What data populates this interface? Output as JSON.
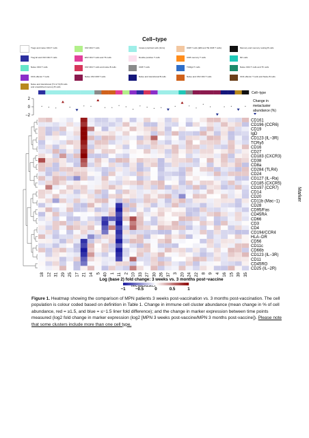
{
  "legend": {
    "title": "Cell−type",
    "items": [
      {
        "label": "Tregs and naive CD4 T cells",
        "color": "#ffffff"
      },
      {
        "label": "CM CD4 T cells",
        "color": "#b2f08a"
      },
      {
        "label": "Innate lymphoid cells (ILCs)",
        "color": "#9eeee8"
      },
      {
        "label": "CD8 T cells (EM and TE CD8 T cells)",
        "color": "#f3c7a0"
      },
      {
        "label": "Memory and memory resting B cells",
        "color": "#111111"
      },
      {
        "label": "Treg EI and CM CD4 T cells",
        "color": "#2b2f9f"
      },
      {
        "label": "EM CD4 T cells and Th cells",
        "color": "#e23f9a"
      },
      {
        "label": "Double positive T cells",
        "color": "#fbe0ee"
      },
      {
        "label": "CD8 memory T cells",
        "color": "#ff8c1a"
      },
      {
        "label": "NK cells",
        "color": "#1fc8b8"
      },
      {
        "label": "Naive CD4 T cells",
        "color": "#66e6c9"
      },
      {
        "label": "CM CD4 T cells and naive B cells",
        "color": "#d6365b"
      },
      {
        "label": "CD8 T cells",
        "color": "#8a8a8a"
      },
      {
        "label": "TCRgd T cells",
        "color": "#2f6ec8"
      },
      {
        "label": "Naive CD4 T cells and Th cells",
        "color": "#1c8a6a"
      },
      {
        "label": "CD4 effector T cells",
        "color": "#8b2fc9"
      },
      {
        "label": "Naive CM CD8 T cells",
        "color": "#8b1a4e"
      },
      {
        "label": "Naive and transitional B cells",
        "color": "#14167a"
      },
      {
        "label": "Naive and CM CD4 T cells",
        "color": "#d0621c"
      },
      {
        "label": "CD4 effector T cells and Naive B cells",
        "color": "#6b3f1a"
      },
      {
        "label": "Naive and transitional (T1 & T2) B cells and unswitched memory B cells",
        "color": "#b8891e"
      }
    ]
  },
  "figure": {
    "celltype_label": "Cell−type",
    "change_label": [
      "Change in",
      "metacluster",
      "abundance (%)"
    ],
    "change_ticks": [
      "2",
      "0",
      "−2"
    ],
    "xlabel": "Metacluster",
    "ylabel": "Marker",
    "colorbar_title": "Log (base 2) fold change: 3 weeks vs. 3 months post−vaccine",
    "colorbar_ticks": [
      "−1",
      "−0.5",
      "0",
      "0.5",
      "1"
    ],
    "colorbar_colors": {
      "low": "#1a1a9e",
      "mid": "#ffffff",
      "high": "#8b0000"
    }
  },
  "chart_data": {
    "type": "heatmap",
    "title": "",
    "xlabel": "Metacluster",
    "ylabel": "Marker",
    "columns": [
      "18",
      "12",
      "31",
      "29",
      "25",
      "17",
      "21",
      "14",
      "5",
      "40",
      "1",
      "11",
      "2",
      "10",
      "33",
      "27",
      "30",
      "26",
      "37",
      "3",
      "20",
      "24",
      "22",
      "8",
      "9",
      "4",
      "16",
      "15",
      "39",
      "35"
    ],
    "column_celltypes": [
      "#2b2f9f",
      "#9eeee8",
      "#9eeee8",
      "#9eeee8",
      "#9eeee8",
      "#9eeee8",
      "#9eeee8",
      "#9eeee8",
      "#8a8a8a",
      "#d0621c",
      "#d0621c",
      "#e23f9a",
      "#b2f08a",
      "#8b2fc9",
      "#2b2f9f",
      "#d6365b",
      "#8b2fc9",
      "#9eeee8",
      "#9eeee8",
      "#9eeee8",
      "#1fc8b8",
      "#8a8a8a",
      "#8b1a4e",
      "#8b1a4e",
      "#8b1a4e",
      "#8b1a4e",
      "#14167a",
      "#14167a",
      "#b8891e",
      "#111111"
    ],
    "rows": [
      "CD161",
      "CD196 (CCR6)",
      "CD19",
      "IgD",
      "CD123 (IL−3R)",
      "TCRγδ",
      "CD16",
      "CD27",
      "CD183 (CXCR3)",
      "CD38",
      "CD8a",
      "CD284 (TLR4)",
      "CD24",
      "CD127 (IL−Ra)",
      "CD185 (CXCR5)",
      "CD197 (CCR7)",
      "CD14",
      "CD20",
      "CD11b (Mac−1)",
      "CD28",
      "CD95/Fas",
      "CD45RA",
      "CD66",
      "CD3",
      "CD4",
      "CD194/CCR4",
      "HLA−DR",
      "CD56",
      "CD11c",
      "CD66b",
      "CD123 (IL−3R)",
      "CD11",
      "CD45RO",
      "CD25 (IL−2R)"
    ],
    "abundance_change": [
      0.1,
      -0.1,
      -0.3,
      1.2,
      -0.1,
      -0.8,
      0.2,
      0.1,
      1.6,
      -0.2,
      -0.2,
      0.3,
      0.0,
      -0.6,
      0.2,
      -0.1,
      -0.4,
      -0.2,
      -0.7,
      0.1,
      1.0,
      0.2,
      -0.3,
      0.6,
      0.0,
      -1.9,
      0.0,
      0.1,
      -0.7,
      0.1
    ],
    "colorbar_range": [
      -1,
      1
    ],
    "colorbar_ticks": [
      -1,
      -0.5,
      0,
      0.5,
      1
    ],
    "note": "cell values estimated from colour intensity"
  },
  "caption": {
    "label": "Figure 1.",
    "text": " Heatmap showing the comparison of MPN patients 3 weeks post-vaccination vs. 3 months post-vaccination. The cell population is colour coded based on definition in Table 1.  Change in immune cell cluster abundance (mean change in % of cell abundance, red = ≥1.5, and blue = ≤−1.5 liner fold difference); and the change in marker expression between time points measured (log2 fold change in marker expression (log2 [MPN 3 weeks post-vaccine/MPN 3 months post-vaccine]).",
    "note": "Please note that some clusters include more than one cell type."
  }
}
